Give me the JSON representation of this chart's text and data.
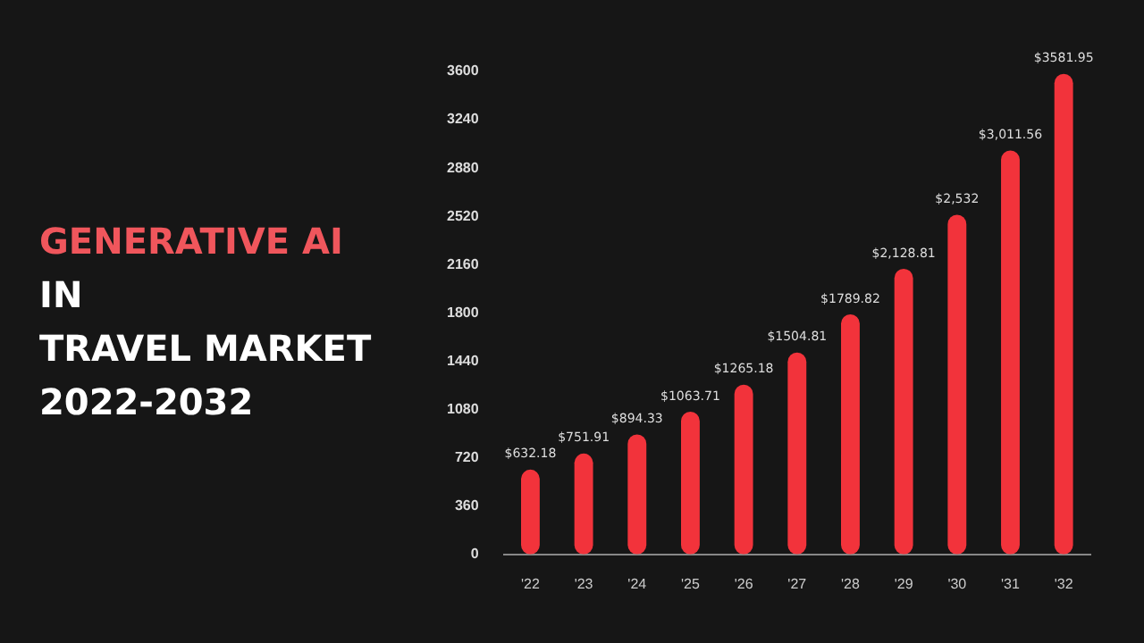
{
  "chart_data": {
    "type": "bar",
    "title": "GENERATIVE AI\nIN\nTRAVEL MARKET\n2022-2032",
    "categories": [
      "'22",
      "'23",
      "'24",
      "'25",
      "'26",
      "'27",
      "'28",
      "'29",
      "'30",
      "'31",
      "'32"
    ],
    "values": [
      632.18,
      751.91,
      894.33,
      1063.71,
      1265.18,
      1504.81,
      1789.82,
      2128.81,
      2532,
      3011.56,
      3581.95
    ],
    "value_labels": [
      "$632.18",
      "$751.91",
      "$894.33",
      "$1063.71",
      "$1265.18",
      "$1504.81",
      "$1789.82",
      "$2,128.81",
      "$2,532",
      "$3,011.56",
      "$3581.95"
    ],
    "color": "#f2333b",
    "ylim": [
      0,
      3600
    ],
    "yticks": [
      0,
      360,
      720,
      1080,
      1440,
      1800,
      2160,
      2520,
      2880,
      3240,
      3600
    ],
    "grid": false,
    "legend": false
  }
}
